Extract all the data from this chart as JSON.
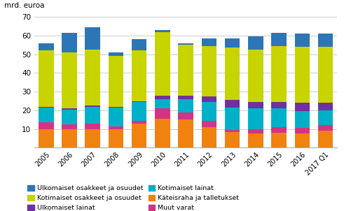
{
  "categories": [
    "2005",
    "2006",
    "2007",
    "2008",
    "2009",
    "2010",
    "2011",
    "2012",
    "2013",
    "2014",
    "2015",
    "2016",
    "2017 Q1"
  ],
  "series": {
    "Käteisraha ja talletukset": [
      10,
      10,
      10,
      10,
      13,
      15.5,
      15,
      11,
      8.5,
      7.5,
      8,
      7.5,
      9
    ],
    "Muut varat": [
      3.5,
      2.5,
      3,
      1.5,
      1.5,
      5.5,
      4,
      3.5,
      1,
      2.5,
      3,
      3,
      3
    ],
    "Kotimaiset lainat": [
      8,
      8,
      9,
      10,
      10,
      5,
      7,
      10,
      12,
      11,
      10,
      9,
      8
    ],
    "Ulkomaiset lainat": [
      0.5,
      0.5,
      0.5,
      0.5,
      0.5,
      2,
      2,
      3,
      4,
      3.5,
      3.5,
      4.5,
      4
    ],
    "Kotimaiset osakkeet ja osuudet": [
      30,
      30,
      30,
      27,
      27,
      34,
      27,
      27,
      28,
      28,
      30,
      30,
      30
    ],
    "Ulkomaiset osakkeet ja osuudet": [
      4,
      10.5,
      12,
      2,
      6,
      1,
      1,
      4,
      5,
      7,
      7,
      7,
      7
    ]
  },
  "colors": {
    "Käteisraha ja talletukset": "#f0820f",
    "Muut varat": "#d63384",
    "Kotimaiset lainat": "#00b0c8",
    "Ulkomaiset lainat": "#7030a0",
    "Kotimaiset osakkeet ja osuudet": "#c8d400",
    "Ulkomaiset osakkeet ja osuudet": "#2e75b6"
  },
  "ylabel": "mrd. euroa",
  "ylim": [
    0,
    70
  ],
  "yticks": [
    0,
    10,
    20,
    30,
    40,
    50,
    60,
    70
  ],
  "stack_order": [
    "Käteisraha ja talletukset",
    "Muut varat",
    "Kotimaiset lainat",
    "Ulkomaiset lainat",
    "Kotimaiset osakkeet ja osuudet",
    "Ulkomaiset osakkeet ja osuudet"
  ],
  "legend_order": [
    "Ulkomaiset osakkeet ja osuudet",
    "Kotimaiset osakkeet ja osuudet",
    "Ulkomaiset lainat",
    "Kotimaiset lainat",
    "Käteisraha ja talletukset",
    "Muut varat"
  ]
}
